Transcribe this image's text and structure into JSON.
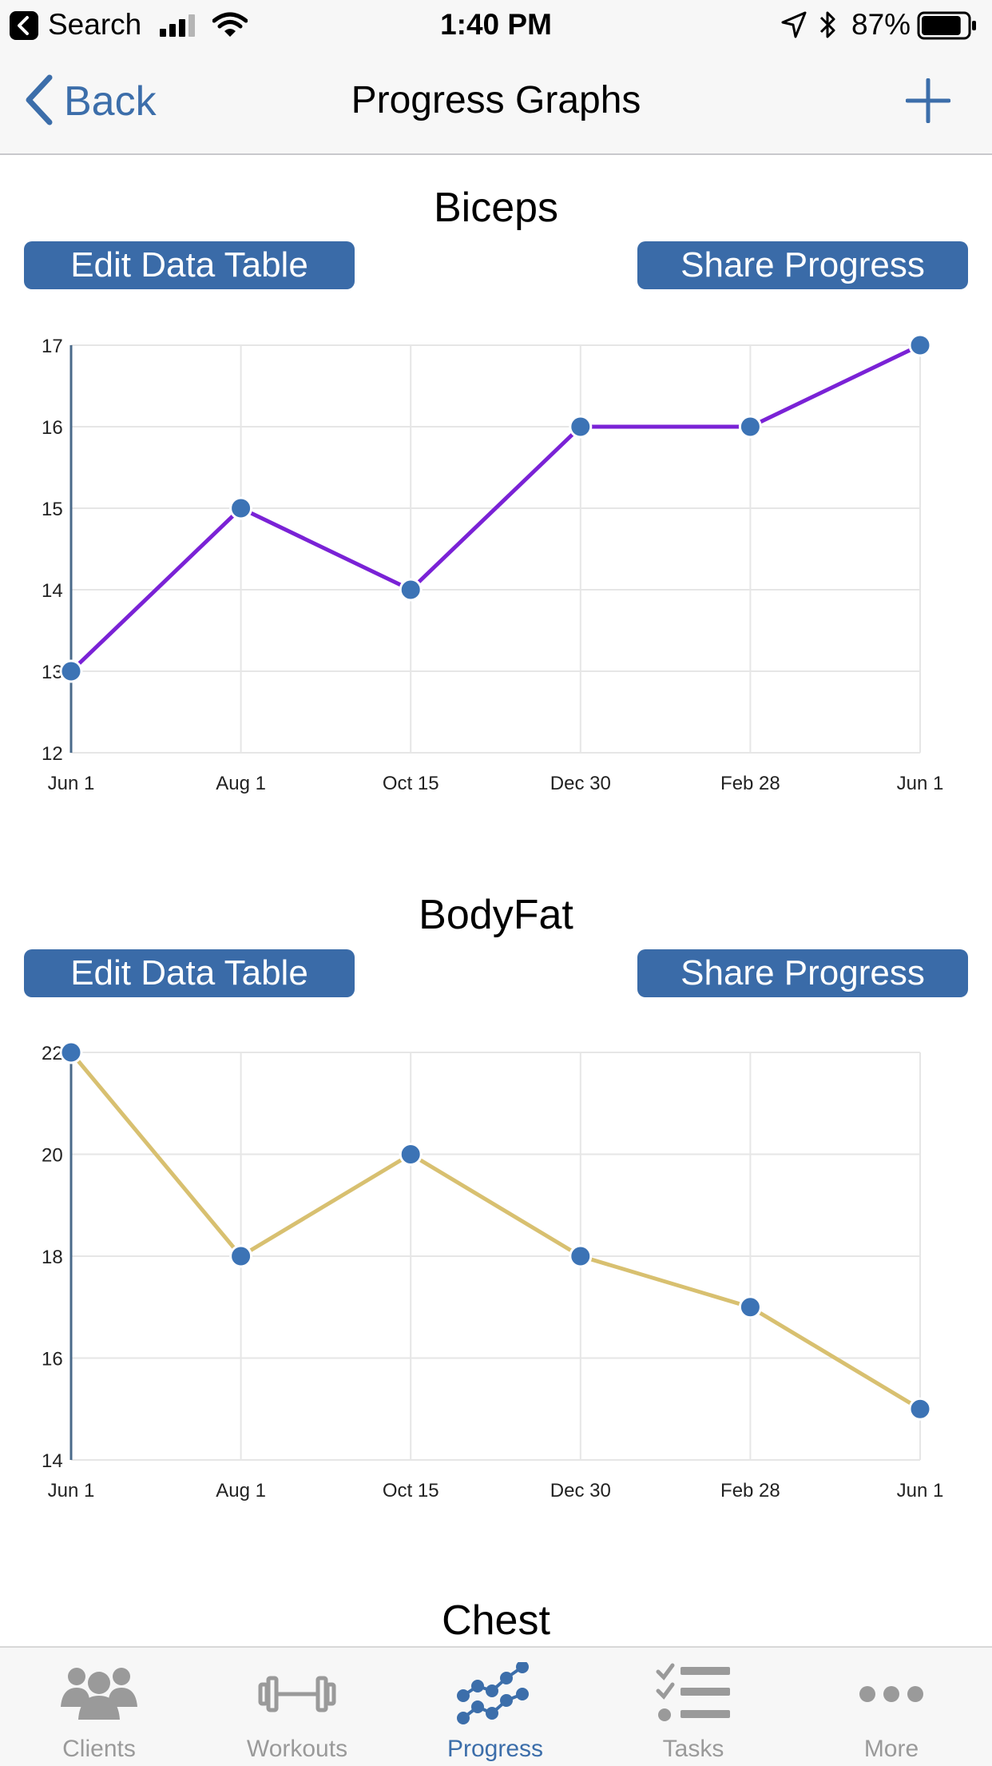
{
  "status_bar": {
    "back_app": "Search",
    "time": "1:40 PM",
    "battery": "87%",
    "battery_level": 0.87
  },
  "nav": {
    "back_label": "Back",
    "title": "Progress Graphs"
  },
  "colors": {
    "accent": "#3c6eaa",
    "button": "#3a6ba8",
    "point": "#3c73b5",
    "biceps_line": "#7a22d6",
    "bodyfat_line": "#d8c070"
  },
  "buttons": {
    "edit": "Edit Data Table",
    "share": "Share Progress"
  },
  "charts": [
    {
      "title": "Biceps",
      "chart_data": {
        "type": "line",
        "title": "Biceps",
        "x": [
          "Jun 1",
          "Aug 1",
          "Oct 15",
          "Dec 30",
          "Feb 28",
          "Jun 1"
        ],
        "series": [
          {
            "values": [
              13,
              15,
              14,
              16,
              16,
              17
            ]
          }
        ],
        "ylim": [
          12,
          17
        ],
        "yticks": [
          "12",
          "13",
          "14",
          "15",
          "16",
          "17"
        ],
        "grid": true
      }
    },
    {
      "title": "BodyFat",
      "chart_data": {
        "type": "line",
        "title": "BodyFat",
        "x": [
          "Jun 1",
          "Aug 1",
          "Oct 15",
          "Dec 30",
          "Feb 28",
          "Jun 1"
        ],
        "series": [
          {
            "values": [
              22,
              18,
              20,
              18,
              17,
              15
            ]
          }
        ],
        "ylim": [
          14,
          22
        ],
        "yticks": [
          "14",
          "16",
          "18",
          "20",
          "22"
        ],
        "grid": true
      }
    }
  ],
  "next_section_title": "Chest",
  "tabs": [
    {
      "label": "Clients",
      "icon": "clients-icon",
      "active": false
    },
    {
      "label": "Workouts",
      "icon": "workouts-icon",
      "active": false
    },
    {
      "label": "Progress",
      "icon": "progress-icon",
      "active": true
    },
    {
      "label": "Tasks",
      "icon": "tasks-icon",
      "active": false
    },
    {
      "label": "More",
      "icon": "more-icon",
      "active": false
    }
  ]
}
